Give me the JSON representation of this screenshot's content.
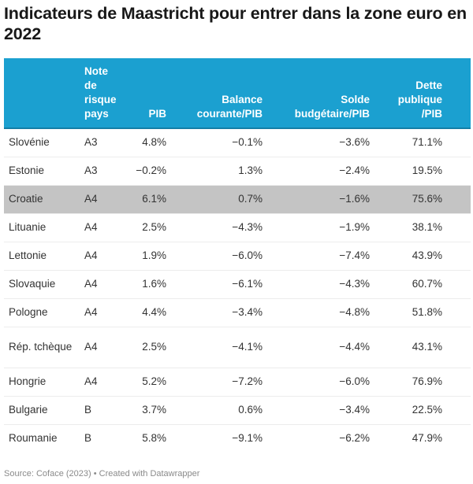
{
  "title": "Indicateurs de Maastricht pour entrer dans la zone euro en 2022",
  "colors": {
    "header_bg": "#1ba0d0",
    "highlight_row": "#c4c4c4"
  },
  "chart_data": {
    "type": "table",
    "title": "Indicateurs de Maastricht pour entrer dans la zone euro en 2022",
    "columns": [
      "",
      "Note\nde\nrisque\npays",
      "PIB",
      "Balance\ncourante/PIB",
      "Solde\nbudgétaire/PIB",
      "Dette\npublique\n/PIB"
    ],
    "highlighted_row": "Croatie",
    "rows": [
      {
        "country": "Slovénie",
        "note": "A3",
        "pib": "4.8%",
        "balance": "−0.1%",
        "solde": "−3.6%",
        "dette": "71.1%"
      },
      {
        "country": "Estonie",
        "note": "A3",
        "pib": "−0.2%",
        "balance": "1.3%",
        "solde": "−2.4%",
        "dette": "19.5%"
      },
      {
        "country": "Croatie",
        "note": "A4",
        "pib": "6.1%",
        "balance": "0.7%",
        "solde": "−1.6%",
        "dette": "75.6%"
      },
      {
        "country": "Lituanie",
        "note": "A4",
        "pib": "2.5%",
        "balance": "−4.3%",
        "solde": "−1.9%",
        "dette": "38.1%"
      },
      {
        "country": "Lettonie",
        "note": "A4",
        "pib": "1.9%",
        "balance": "−6.0%",
        "solde": "−7.4%",
        "dette": "43.9%"
      },
      {
        "country": "Slovaquie",
        "note": "A4",
        "pib": "1.6%",
        "balance": "−6.1%",
        "solde": "−4.3%",
        "dette": "60.7%"
      },
      {
        "country": "Pologne",
        "note": "A4",
        "pib": "4.4%",
        "balance": "−3.4%",
        "solde": "−4.8%",
        "dette": "51.8%"
      },
      {
        "country": "Rép. tchèque",
        "note": "A4",
        "pib": "2.5%",
        "balance": "−4.1%",
        "solde": "−4.4%",
        "dette": "43.1%"
      },
      {
        "country": "Hongrie",
        "note": "A4",
        "pib": "5.2%",
        "balance": "−7.2%",
        "solde": "−6.0%",
        "dette": "76.9%"
      },
      {
        "country": "Bulgarie",
        "note": "B",
        "pib": "3.7%",
        "balance": "0.6%",
        "solde": "−3.4%",
        "dette": "22.5%"
      },
      {
        "country": "Roumanie",
        "note": "B",
        "pib": "5.8%",
        "balance": "−9.1%",
        "solde": "−6.2%",
        "dette": "47.9%"
      }
    ]
  },
  "footer": "Source: Coface (2023) • Created with Datawrapper"
}
